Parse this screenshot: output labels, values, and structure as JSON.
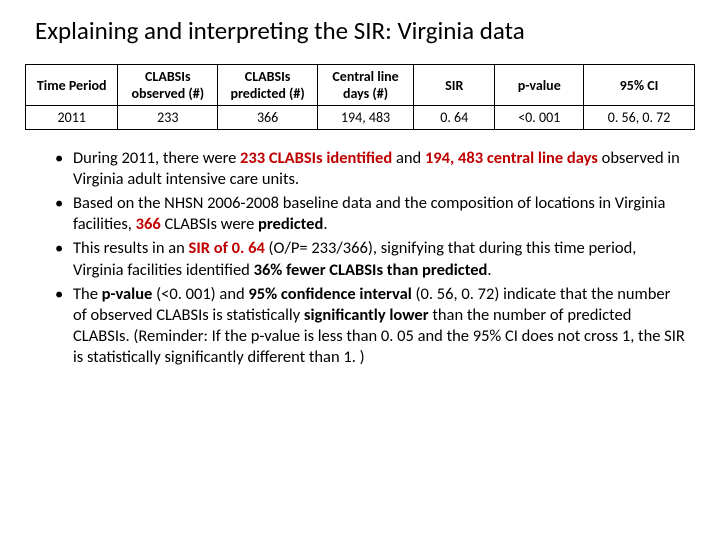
{
  "title": "Explaining and interpreting the SIR: Virginia data",
  "table": {
    "headers": {
      "period": "Time Period",
      "observed": "CLABSIs observed (#)",
      "predicted": "CLABSIs predicted (#)",
      "cld": "Central line days  (#)",
      "sir": "SIR",
      "pvalue": "p-value",
      "ci": "95% CI"
    },
    "row": {
      "period": "2011",
      "observed": "233",
      "predicted": "366",
      "cld": "194, 483",
      "sir": "0. 64",
      "pvalue": "<0. 001",
      "ci": "0. 56, 0. 72"
    }
  },
  "bullets": {
    "b1a": "During 2011, there were ",
    "b1b": "233 CLABSIs identified ",
    "b1c": "and ",
    "b1d": "194, 483 central line days ",
    "b1e": "observed in Virginia adult intensive care units.",
    "b2a": "Based on the NHSN 2006-2008 baseline data and the composition of locations in Virginia facilities, ",
    "b2b": "366 ",
    "b2c": "CLABSIs were ",
    "b2d": "predicted",
    "b2e": ".",
    "b3a": "This results in an ",
    "b3b": "SIR of 0. 64 ",
    "b3c": "(O/P= 233/366), signifying that during this time period, Virginia facilities identified ",
    "b3d": "36% fewer CLABSIs than predicted",
    "b3e": ".",
    "b4a": "The ",
    "b4b": "p-value ",
    "b4c": "(<0. 001) and ",
    "b4d": "95% confidence interval ",
    "b4e": "(0. 56, 0. 72) indicate that the number of observed CLABSIs is statistically ",
    "b4f": "significantly lower ",
    "b4g": "than the number of predicted CLABSIs.  (Reminder: If the p-value is less than 0. 05 and the 95% CI does not cross 1, the SIR is statistically significantly different than 1. )"
  }
}
